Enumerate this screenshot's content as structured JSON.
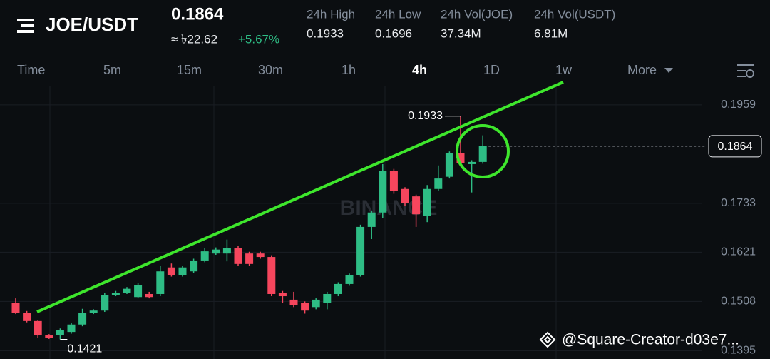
{
  "header": {
    "pair": "JOE/USDT",
    "price": "0.1864",
    "fiat": "≈ ৳22.62",
    "change": "+5.67%",
    "stats": [
      {
        "label": "24h High",
        "value": "0.1933"
      },
      {
        "label": "24h Low",
        "value": "0.1696"
      },
      {
        "label": "24h Vol(JOE)",
        "value": "37.34M"
      },
      {
        "label": "24h Vol(USDT)",
        "value": "6.81M"
      }
    ]
  },
  "tabs": [
    "Time",
    "5m",
    "15m",
    "30m",
    "1h",
    "4h",
    "1D",
    "1w",
    "More"
  ],
  "active_tab": "4h",
  "chart_data": {
    "type": "candlestick",
    "watermark": "BINANCE",
    "open": [
      0.1504,
      0.1482,
      0.1463,
      0.143,
      0.143,
      0.1438,
      0.1455,
      0.1482,
      0.1487,
      0.1523,
      0.1528,
      0.1518,
      0.1525,
      0.1525,
      0.1586,
      0.1569,
      0.1577,
      0.1602,
      0.1618,
      0.1618,
      0.1631,
      0.1618,
      0.1618,
      0.161,
      0.1528,
      0.1512,
      0.1504,
      0.1495,
      0.1504,
      0.1525,
      0.1548,
      0.1569,
      0.1679,
      0.1712,
      0.1807,
      0.1766,
      0.1749,
      0.1705,
      0.1766,
      0.1794,
      0.1848,
      0.1823,
      0.1828
    ],
    "high": [
      0.1515,
      0.1486,
      0.1466,
      0.1433,
      0.1446,
      0.1459,
      0.1491,
      0.149,
      0.1527,
      0.1532,
      0.1541,
      0.155,
      0.153,
      0.159,
      0.1595,
      0.159,
      0.1606,
      0.163,
      0.1632,
      0.165,
      0.1635,
      0.1622,
      0.1622,
      0.1614,
      0.1532,
      0.153,
      0.1508,
      0.1515,
      0.153,
      0.1552,
      0.1572,
      0.1684,
      0.1716,
      0.1823,
      0.1812,
      0.177,
      0.1753,
      0.1775,
      0.182,
      0.1852,
      0.1933,
      0.1832,
      0.1889
    ],
    "low": [
      0.1479,
      0.146,
      0.1424,
      0.1422,
      0.1421,
      0.1434,
      0.1451,
      0.1479,
      0.1484,
      0.152,
      0.1525,
      0.1515,
      0.1515,
      0.152,
      0.1565,
      0.1565,
      0.1574,
      0.1598,
      0.1615,
      0.16,
      0.159,
      0.159,
      0.1606,
      0.152,
      0.1505,
      0.1495,
      0.148,
      0.149,
      0.149,
      0.152,
      0.1544,
      0.1565,
      0.1651,
      0.17,
      0.1755,
      0.1728,
      0.1679,
      0.169,
      0.1762,
      0.179,
      0.182,
      0.1758,
      0.1824
    ],
    "close": [
      0.1482,
      0.1463,
      0.143,
      0.1425,
      0.1442,
      0.1455,
      0.1482,
      0.1487,
      0.1523,
      0.1528,
      0.1537,
      0.1545,
      0.1518,
      0.1577,
      0.1569,
      0.1586,
      0.1602,
      0.1623,
      0.1627,
      0.1631,
      0.1594,
      0.1594,
      0.161,
      0.1525,
      0.152,
      0.1499,
      0.1487,
      0.1512,
      0.1525,
      0.1548,
      0.1569,
      0.1679,
      0.1712,
      0.1807,
      0.1761,
      0.1733,
      0.1708,
      0.1766,
      0.179,
      0.1848,
      0.1826,
      0.1828,
      0.1864
    ],
    "current_price": 0.1864,
    "ylim": [
      0.1376,
      0.2003
    ],
    "yticks": [
      0.1959,
      0.1733,
      0.1621,
      0.1508,
      0.1395
    ],
    "up_color": "#2ebd85",
    "down_color": "#f6465d",
    "grid": true
  },
  "footer": "@Square-Creator-d03e7..."
}
